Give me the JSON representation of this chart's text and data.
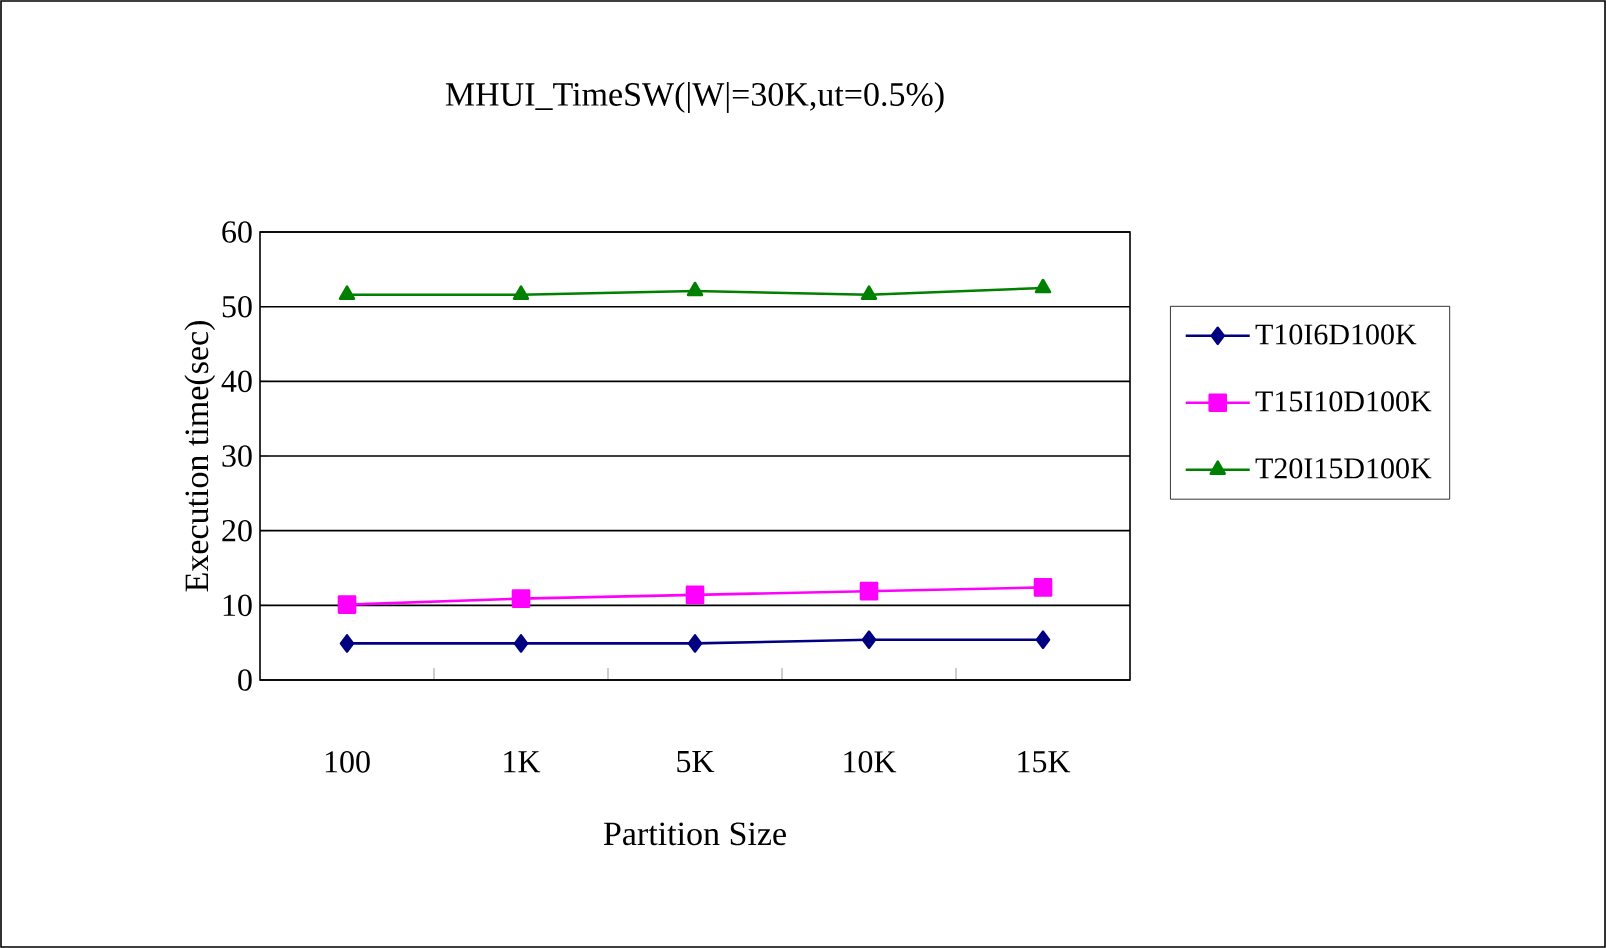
{
  "chart_data": {
    "type": "line",
    "title": "MHUI_TimeSW(|W|=30K,ut=0.5%)",
    "xlabel": "Partition Size",
    "ylabel": "Execution time(sec)",
    "categories": [
      "100",
      "1K",
      "5K",
      "10K",
      "15K"
    ],
    "series": [
      {
        "name": "T10I6D100K",
        "color": "#000080",
        "marker": "diamond",
        "values": [
          4.9,
          4.9,
          4.9,
          5.4,
          5.4
        ]
      },
      {
        "name": "T15I10D100K",
        "color": "#ff00ff",
        "marker": "square",
        "values": [
          10.1,
          10.9,
          11.4,
          11.9,
          12.4
        ]
      },
      {
        "name": "T20I15D100K",
        "color": "#008000",
        "marker": "triangle",
        "values": [
          51.6,
          51.6,
          52.1,
          51.6,
          52.5
        ]
      }
    ],
    "ylim": [
      0,
      60
    ],
    "yticks": [
      0,
      10,
      20,
      30,
      40,
      50,
      60
    ],
    "grid": "y",
    "legend": "right",
    "line_style": "solid"
  }
}
